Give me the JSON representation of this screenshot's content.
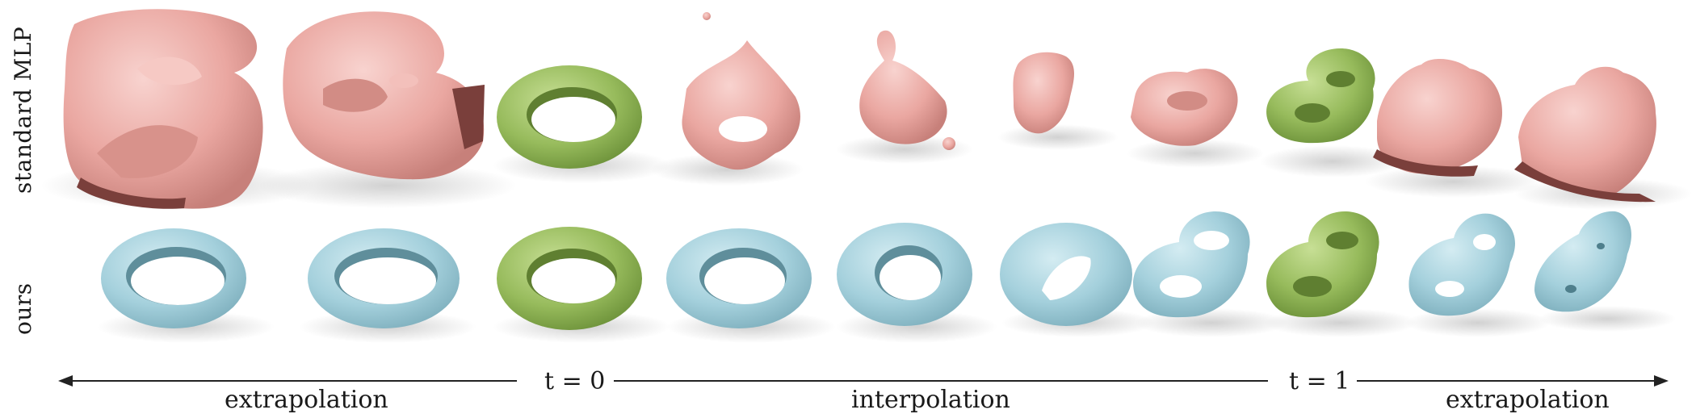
{
  "rows": {
    "top_label": "standard MLP",
    "bottom_label": "ours"
  },
  "axis": {
    "extrapolation_left": "extrapolation",
    "t0": "t = 0",
    "interpolation": "interpolation",
    "t1": "t = 1",
    "extrapolation_right": "extrapolation"
  },
  "colors": {
    "mlp_shape": "#ecaaa4",
    "ours_shape": "#a6d1dc",
    "input_shape": "#98bd5e",
    "arrow": "#222222"
  }
}
